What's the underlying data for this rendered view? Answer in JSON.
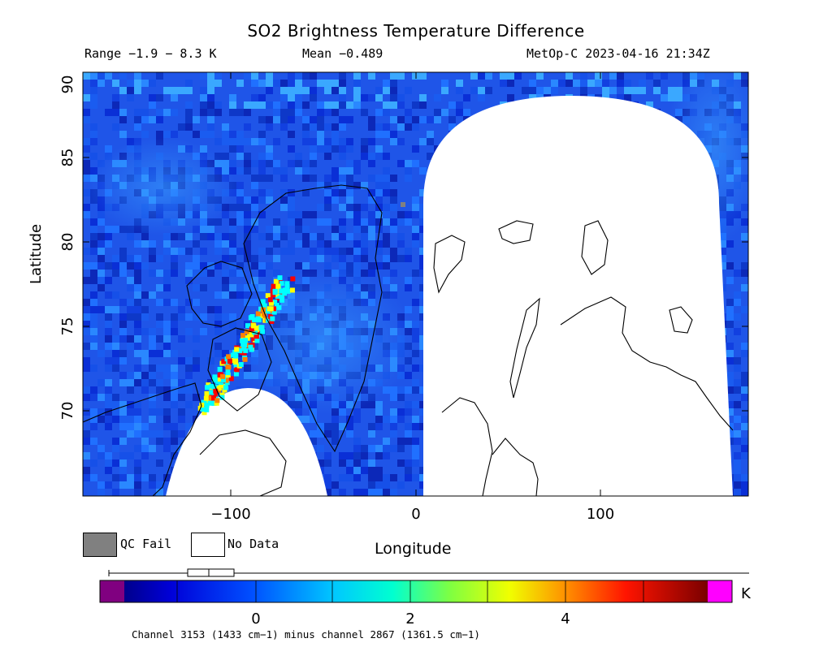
{
  "title": "SO2 Brightness Temperature Difference",
  "subtitle": {
    "range": "Range −1.9 − 8.3 K",
    "mean": "Mean −0.489",
    "satellite_time": "MetOp-C 2023-04-16 21:34Z"
  },
  "axes": {
    "ylabel": "Latitude",
    "xlabel": "Longitude",
    "y_ticks": [
      "90",
      "85",
      "80",
      "75",
      "70"
    ],
    "x_ticks": [
      "−100",
      "0",
      "100"
    ],
    "xlim": [
      -180,
      180
    ],
    "ylim": [
      65,
      90
    ]
  },
  "legend": {
    "qc_fail": "QC Fail",
    "no_data": "No Data",
    "qc_fail_color": "#808080",
    "no_data_color": "#ffffff"
  },
  "colorbar": {
    "ticks": [
      "0",
      "2",
      "4"
    ],
    "tick_values": [
      0,
      2,
      4
    ],
    "vmin": -1.5,
    "vmax": 5.8,
    "unit": "K",
    "under_color": "#800080",
    "over_color": "#ff00ff",
    "caption": "Channel 3153 (1433 cm−1) minus channel 2867 (1361.5 cm−1)"
  },
  "map": {
    "background_color": "#1f55e8",
    "plume_colors": [
      "#00ffff",
      "#ffff00",
      "#ff8000",
      "#ff0000",
      "#b00000"
    ]
  }
}
